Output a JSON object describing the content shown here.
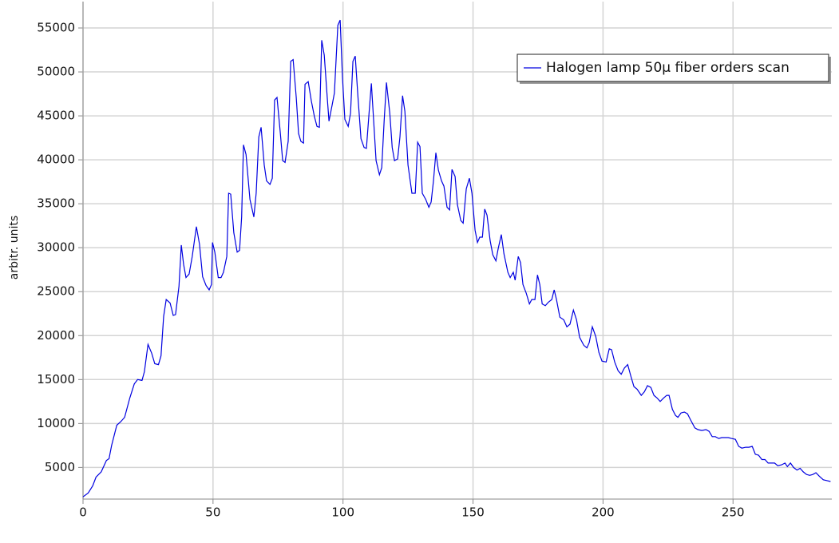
{
  "chart_data": {
    "type": "line",
    "y_label": "arbitr. units",
    "xlim": [
      0,
      288
    ],
    "ylim": [
      1400,
      58000
    ],
    "xticks": [
      0,
      50,
      100,
      150,
      200,
      250
    ],
    "yticks": [
      5000,
      10000,
      15000,
      20000,
      25000,
      30000,
      35000,
      40000,
      45000,
      50000,
      55000
    ],
    "grid": true,
    "legend": "upper right",
    "x": [
      0,
      2,
      3.7,
      5,
      7,
      9,
      10,
      11,
      13,
      14.5,
      16,
      18,
      19.7,
      21,
      22.7,
      23.6,
      25,
      26.4,
      27.6,
      29,
      30,
      31,
      32,
      33.5,
      34.7,
      35.6,
      36.9,
      37.8,
      38.7,
      39.6,
      40.8,
      42,
      43.6,
      44.8,
      46,
      47.3,
      48.5,
      49.4,
      49.8,
      50.7,
      52,
      53.1,
      54,
      55.3,
      56,
      56.8,
      58,
      59.3,
      60.2,
      61,
      61.7,
      62.7,
      64.2,
      65.7,
      66.6,
      67.6,
      68.5,
      69.7,
      70.6,
      71.9,
      72.8,
      73.7,
      74.6,
      75.9,
      76.8,
      77.7,
      78.9,
      79.9,
      80.8,
      82,
      82.9,
      83.8,
      84.8,
      85.4,
      86.6,
      87.8,
      89,
      90,
      90.9,
      91.8,
      92.8,
      93.7,
      94.6,
      95.8,
      96.7,
      98,
      98.9,
      99.8,
      100.7,
      102,
      102.9,
      103.8,
      104.7,
      105.7,
      106.9,
      108.1,
      109,
      110,
      110.9,
      111.8,
      112.7,
      114,
      114.9,
      115.8,
      116.7,
      118,
      118.9,
      119.8,
      121,
      121.9,
      122.9,
      123.8,
      125,
      126.5,
      127.8,
      128.7,
      129.6,
      130.5,
      131.8,
      133,
      133.9,
      134.8,
      135.7,
      136.7,
      137.9,
      138.8,
      140,
      141,
      141.9,
      143.1,
      144,
      145.3,
      146.2,
      147.4,
      148.6,
      149.6,
      150.8,
      151.7,
      152.6,
      153.6,
      154.5,
      155.4,
      156.6,
      157.6,
      158.8,
      159.7,
      160.9,
      161.9,
      163.4,
      164.3,
      165.5,
      166.2,
      167.4,
      168.3,
      169.2,
      170.5,
      171.7,
      172.6,
      173.8,
      174.8,
      175.7,
      176.6,
      177.8,
      179,
      180.3,
      181.2,
      182.1,
      183.4,
      184.9,
      186.1,
      187.3,
      188.6,
      189.8,
      191,
      192.6,
      193.8,
      194.7,
      195.9,
      197.2,
      198.4,
      199.6,
      201.2,
      202.4,
      203.3,
      204.5,
      205.8,
      207,
      208.2,
      209.5,
      210.7,
      211.9,
      213.1,
      214.7,
      215.9,
      217.1,
      218.4,
      219.6,
      220.8,
      222,
      223.3,
      224.5,
      225.4,
      226.7,
      227.9,
      228.8,
      230,
      231.3,
      232.5,
      233.7,
      235.3,
      236.5,
      238,
      239.6,
      240.8,
      242,
      243.2,
      244.5,
      245.7,
      246.9,
      248.2,
      249.4,
      250.9,
      252.2,
      253.4,
      254.9,
      256.1,
      257.4,
      258.6,
      259.8,
      261.1,
      262.3,
      263.5,
      264.7,
      266,
      267.2,
      268.7,
      270,
      270.9,
      272.1,
      273.3,
      274.6,
      275.8,
      277,
      278.3,
      279.5,
      280.7,
      281.9,
      283.2,
      284.7,
      286.2,
      287.5
    ],
    "series": [
      {
        "name": "Halogen lamp 50μ fiber orders scan",
        "color": "#0000e0",
        "values": [
          1650,
          2100,
          2900,
          3900,
          4500,
          5800,
          6000,
          7500,
          9800,
          10200,
          10700,
          12900,
          14500,
          15000,
          14900,
          15900,
          19000,
          18000,
          16800,
          16700,
          17700,
          22200,
          24100,
          23700,
          22300,
          22400,
          25600,
          30300,
          28100,
          26600,
          27000,
          29000,
          32400,
          30400,
          26700,
          25700,
          25200,
          25800,
          30600,
          29500,
          26600,
          26600,
          27200,
          29000,
          36200,
          36100,
          31700,
          29500,
          29700,
          33500,
          41700,
          40600,
          35500,
          33500,
          36200,
          42600,
          43700,
          39400,
          37600,
          37200,
          37900,
          46800,
          47100,
          43000,
          39900,
          39700,
          42100,
          51200,
          51400,
          47100,
          43000,
          42100,
          41900,
          48600,
          48900,
          46700,
          44900,
          43800,
          43700,
          53600,
          51900,
          48000,
          44400,
          46200,
          47600,
          55300,
          55900,
          49400,
          44600,
          43800,
          45300,
          51200,
          51800,
          47300,
          42400,
          41400,
          41300,
          45300,
          48700,
          44400,
          39900,
          38300,
          39100,
          44400,
          48800,
          45300,
          41400,
          39900,
          40100,
          42600,
          47300,
          45500,
          39400,
          36200,
          36200,
          42000,
          41500,
          36200,
          35500,
          34600,
          35200,
          37600,
          40800,
          38800,
          37600,
          37000,
          34600,
          34300,
          38900,
          38100,
          34900,
          33100,
          32800,
          36700,
          37900,
          36200,
          32000,
          30600,
          31200,
          31200,
          34400,
          33700,
          30800,
          29200,
          28500,
          29900,
          31500,
          29300,
          27200,
          26600,
          27200,
          26300,
          29000,
          28300,
          25800,
          24800,
          23600,
          24100,
          24100,
          26900,
          25800,
          23600,
          23400,
          23800,
          24100,
          25200,
          24100,
          22100,
          21800,
          21000,
          21300,
          22900,
          21800,
          19800,
          18900,
          18600,
          19200,
          21000,
          19900,
          18100,
          17100,
          17000,
          18500,
          18400,
          17000,
          16000,
          15600,
          16300,
          16700,
          15400,
          14200,
          13900,
          13200,
          13600,
          14300,
          14100,
          13200,
          12900,
          12500,
          12900,
          13200,
          13200,
          11600,
          10900,
          10700,
          11200,
          11300,
          11100,
          10400,
          9500,
          9300,
          9200,
          9300,
          9100,
          8500,
          8500,
          8300,
          8400,
          8400,
          8400,
          8300,
          8200,
          7400,
          7200,
          7300,
          7300,
          7400,
          6500,
          6400,
          5900,
          5900,
          5500,
          5500,
          5500,
          5200,
          5300,
          5500,
          5100,
          5500,
          5000,
          4700,
          4900,
          4500,
          4200,
          4100,
          4200,
          4400,
          4000,
          3600,
          3500,
          3400
        ]
      }
    ]
  }
}
